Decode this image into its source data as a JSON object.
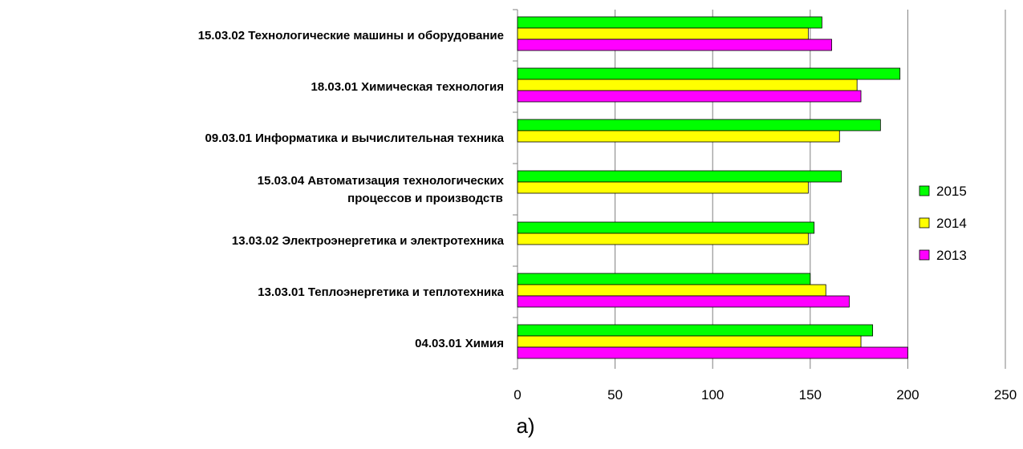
{
  "chart_data": {
    "type": "bar",
    "orientation": "horizontal",
    "categories": [
      "15.03.02 Технологические машины и оборудование",
      "18.03.01 Химическая технология",
      "09.03.01 Информатика и вычислительная техника",
      "15.03.04 Автоматизация технологических процессов и производств",
      "13.03.02 Электроэнергетика и электротехника",
      "13.03.01 Теплоэнергетика и теплотехника",
      "04.03.01 Химия"
    ],
    "category_lines": [
      [
        "15.03.02 Технологические машины и оборудование"
      ],
      [
        "18.03.01 Химическая технология"
      ],
      [
        "09.03.01 Информатика и вычислительная техника"
      ],
      [
        "15.03.04 Автоматизация технологических",
        "процессов и производств"
      ],
      [
        "13.03.02 Электроэнергетика и электротехника"
      ],
      [
        "13.03.01 Теплоэнергетика и теплотехника"
      ],
      [
        "04.03.01 Химия"
      ]
    ],
    "series": [
      {
        "name": "2015",
        "color": "#00ff00",
        "values": [
          156,
          196,
          186,
          166,
          152,
          150,
          182
        ]
      },
      {
        "name": "2014",
        "color": "#ffff00",
        "values": [
          149,
          174,
          165,
          149,
          149,
          158,
          176
        ]
      },
      {
        "name": "2013",
        "color": "#ff00ff",
        "values": [
          161,
          176,
          null,
          null,
          null,
          170,
          200
        ]
      }
    ],
    "xlim": [
      0,
      250
    ],
    "x_ticks": [
      "0",
      "50",
      "100",
      "150",
      "200",
      "250"
    ],
    "grid": "vertical",
    "legend_position": "right",
    "caption": "а)"
  }
}
